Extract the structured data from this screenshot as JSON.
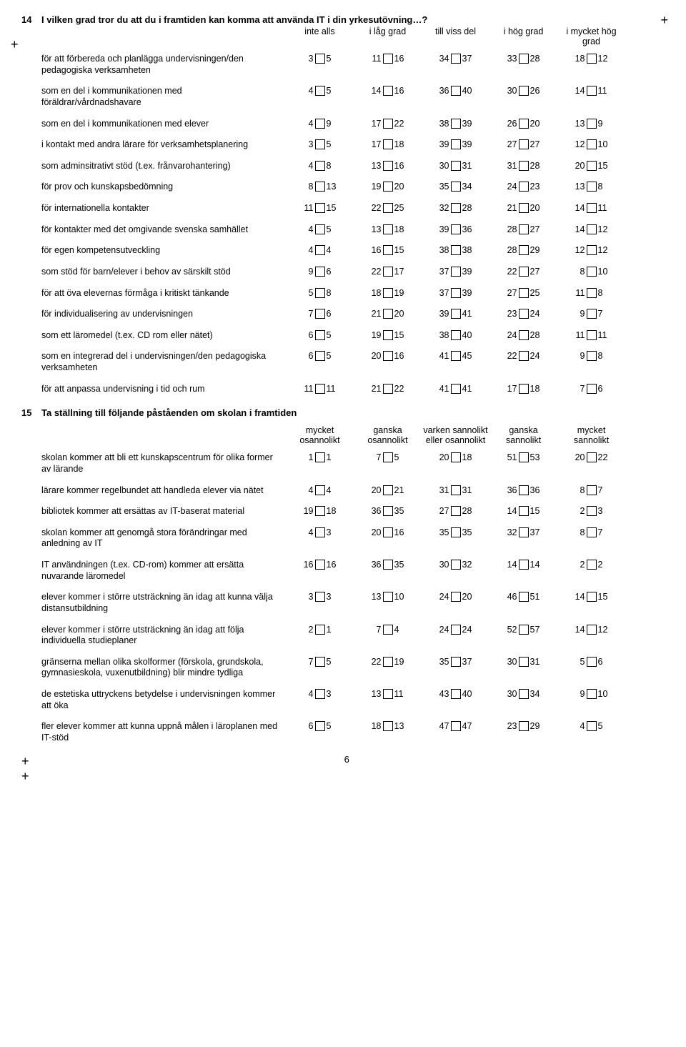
{
  "q14": {
    "num": "14",
    "title": "I vilken grad tror du att du i framtiden kan komma att använda IT i din yrkesutövning…?",
    "headers": [
      "inte alls",
      "i låg grad",
      "till viss del",
      "i hög grad",
      "i mycket hög grad"
    ],
    "rows": [
      {
        "label": "för att förbereda och planlägga undervisningen/den pedagogiska verksamheten",
        "vals": [
          [
            "3",
            "5"
          ],
          [
            "11",
            "16"
          ],
          [
            "34",
            "37"
          ],
          [
            "33",
            "28"
          ],
          [
            "18",
            "12"
          ]
        ]
      },
      {
        "label": "som en del i kommunikationen med föräldrar/vårdnadshavare",
        "vals": [
          [
            "4",
            "5"
          ],
          [
            "14",
            "16"
          ],
          [
            "36",
            "40"
          ],
          [
            "30",
            "26"
          ],
          [
            "14",
            "11"
          ]
        ]
      },
      {
        "label": "som en del i kommunikationen med elever",
        "vals": [
          [
            "4",
            "9"
          ],
          [
            "17",
            "22"
          ],
          [
            "38",
            "39"
          ],
          [
            "26",
            "20"
          ],
          [
            "13",
            "9"
          ]
        ]
      },
      {
        "label": "i kontakt med andra lärare för verksamhetsplanering",
        "vals": [
          [
            "3",
            "5"
          ],
          [
            "17",
            "18"
          ],
          [
            "39",
            "39"
          ],
          [
            "27",
            "27"
          ],
          [
            "12",
            "10"
          ]
        ]
      },
      {
        "label": "som adminsitrativt stöd (t.ex. frånvarohantering)",
        "vals": [
          [
            "4",
            "8"
          ],
          [
            "13",
            "16"
          ],
          [
            "30",
            "31"
          ],
          [
            "31",
            "28"
          ],
          [
            "20",
            "15"
          ]
        ]
      },
      {
        "label": "för prov och kunskapsbedömning",
        "vals": [
          [
            "8",
            "13"
          ],
          [
            "19",
            "20"
          ],
          [
            "35",
            "34"
          ],
          [
            "24",
            "23"
          ],
          [
            "13",
            "8"
          ]
        ]
      },
      {
        "label": "för internationella kontakter",
        "vals": [
          [
            "11",
            "15"
          ],
          [
            "22",
            "25"
          ],
          [
            "32",
            "28"
          ],
          [
            "21",
            "20"
          ],
          [
            "14",
            "11"
          ]
        ]
      },
      {
        "label": "för kontakter med det omgivande svenska samhället",
        "vals": [
          [
            "4",
            "5"
          ],
          [
            "13",
            "18"
          ],
          [
            "39",
            "36"
          ],
          [
            "28",
            "27"
          ],
          [
            "14",
            "12"
          ]
        ]
      },
      {
        "label": "för egen kompetensutveckling",
        "vals": [
          [
            "4",
            "4"
          ],
          [
            "16",
            "15"
          ],
          [
            "38",
            "38"
          ],
          [
            "28",
            "29"
          ],
          [
            "12",
            "12"
          ]
        ]
      },
      {
        "label": "som stöd för barn/elever i behov av särskilt stöd",
        "vals": [
          [
            "9",
            "6"
          ],
          [
            "22",
            "17"
          ],
          [
            "37",
            "39"
          ],
          [
            "22",
            "27"
          ],
          [
            "8",
            "10"
          ]
        ]
      },
      {
        "label": "för att öva elevernas förmåga i kritiskt tänkande",
        "vals": [
          [
            "5",
            "8"
          ],
          [
            "18",
            "19"
          ],
          [
            "37",
            "39"
          ],
          [
            "27",
            "25"
          ],
          [
            "11",
            "8"
          ]
        ]
      },
      {
        "label": "för individualisering av undervisningen",
        "vals": [
          [
            "7",
            "6"
          ],
          [
            "21",
            "20"
          ],
          [
            "39",
            "41"
          ],
          [
            "23",
            "24"
          ],
          [
            "9",
            "7"
          ]
        ]
      },
      {
        "label": "som ett läromedel (t.ex. CD rom eller nätet)",
        "vals": [
          [
            "6",
            "5"
          ],
          [
            "19",
            "15"
          ],
          [
            "38",
            "40"
          ],
          [
            "24",
            "28"
          ],
          [
            "11",
            "11"
          ]
        ]
      },
      {
        "label": "som en integrerad del i undervisningen/den pedagogiska verksamheten",
        "vals": [
          [
            "6",
            "5"
          ],
          [
            "20",
            "16"
          ],
          [
            "41",
            "45"
          ],
          [
            "22",
            "24"
          ],
          [
            "9",
            "8"
          ]
        ]
      },
      {
        "label": "för att anpassa undervisning i tid och rum",
        "vals": [
          [
            "11",
            "11"
          ],
          [
            "21",
            "22"
          ],
          [
            "41",
            "41"
          ],
          [
            "17",
            "18"
          ],
          [
            "7",
            "6"
          ]
        ]
      }
    ]
  },
  "q15": {
    "num": "15",
    "title": "Ta ställning till följande påståenden om skolan i framtiden",
    "headers": [
      "mycket osannolikt",
      "ganska osannolikt",
      "varken sannolikt eller osannolikt",
      "ganska sannolikt",
      "mycket sannolikt"
    ],
    "rows": [
      {
        "label": "skolan kommer att bli ett kunskapscentrum för olika former av lärande",
        "vals": [
          [
            "1",
            "1"
          ],
          [
            "7",
            "5"
          ],
          [
            "20",
            "18"
          ],
          [
            "51",
            "53"
          ],
          [
            "20",
            "22"
          ]
        ]
      },
      {
        "label": "lärare kommer regelbundet att handleda elever via nätet",
        "vals": [
          [
            "4",
            "4"
          ],
          [
            "20",
            "21"
          ],
          [
            "31",
            "31"
          ],
          [
            "36",
            "36"
          ],
          [
            "8",
            "7"
          ]
        ]
      },
      {
        "label": "bibliotek kommer att ersättas av IT-baserat material",
        "vals": [
          [
            "19",
            "18"
          ],
          [
            "36",
            "35"
          ],
          [
            "27",
            "28"
          ],
          [
            "14",
            "15"
          ],
          [
            "2",
            "3"
          ]
        ]
      },
      {
        "label": "skolan kommer att genomgå stora förändringar med anledning av IT",
        "vals": [
          [
            "4",
            "3"
          ],
          [
            "20",
            "16"
          ],
          [
            "35",
            "35"
          ],
          [
            "32",
            "37"
          ],
          [
            "8",
            "7"
          ]
        ]
      },
      {
        "label": "IT användningen (t.ex. CD-rom) kommer att ersätta nuvarande läromedel",
        "vals": [
          [
            "16",
            "16"
          ],
          [
            "36",
            "35"
          ],
          [
            "30",
            "32"
          ],
          [
            "14",
            "14"
          ],
          [
            "2",
            "2"
          ]
        ]
      },
      {
        "label": "elever kommer i större utsträckning än idag att kunna välja distansutbildning",
        "vals": [
          [
            "3",
            "3"
          ],
          [
            "13",
            "10"
          ],
          [
            "24",
            "20"
          ],
          [
            "46",
            "51"
          ],
          [
            "14",
            "15"
          ]
        ]
      },
      {
        "label": "elever kommer i större utsträckning än idag att följa individuella studieplaner",
        "vals": [
          [
            "2",
            "1"
          ],
          [
            "7",
            "4"
          ],
          [
            "24",
            "24"
          ],
          [
            "52",
            "57"
          ],
          [
            "14",
            "12"
          ]
        ]
      },
      {
        "label": "gränserna mellan olika skolformer (förskola, grundskola, gymnasieskola, vuxenutbildning) blir mindre tydliga",
        "vals": [
          [
            "7",
            "5"
          ],
          [
            "22",
            "19"
          ],
          [
            "35",
            "37"
          ],
          [
            "30",
            "31"
          ],
          [
            "5",
            "6"
          ]
        ]
      },
      {
        "label": "de estetiska uttryckens betydelse i undervisningen kommer att öka",
        "vals": [
          [
            "4",
            "3"
          ],
          [
            "13",
            "11"
          ],
          [
            "43",
            "40"
          ],
          [
            "30",
            "34"
          ],
          [
            "9",
            "10"
          ]
        ]
      },
      {
        "label": "fler elever kommer att kunna uppnå målen i läroplanen med IT-stöd",
        "vals": [
          [
            "6",
            "5"
          ],
          [
            "18",
            "13"
          ],
          [
            "47",
            "47"
          ],
          [
            "23",
            "29"
          ],
          [
            "4",
            "5"
          ]
        ]
      }
    ]
  },
  "pageNum": "6",
  "plus": "+"
}
